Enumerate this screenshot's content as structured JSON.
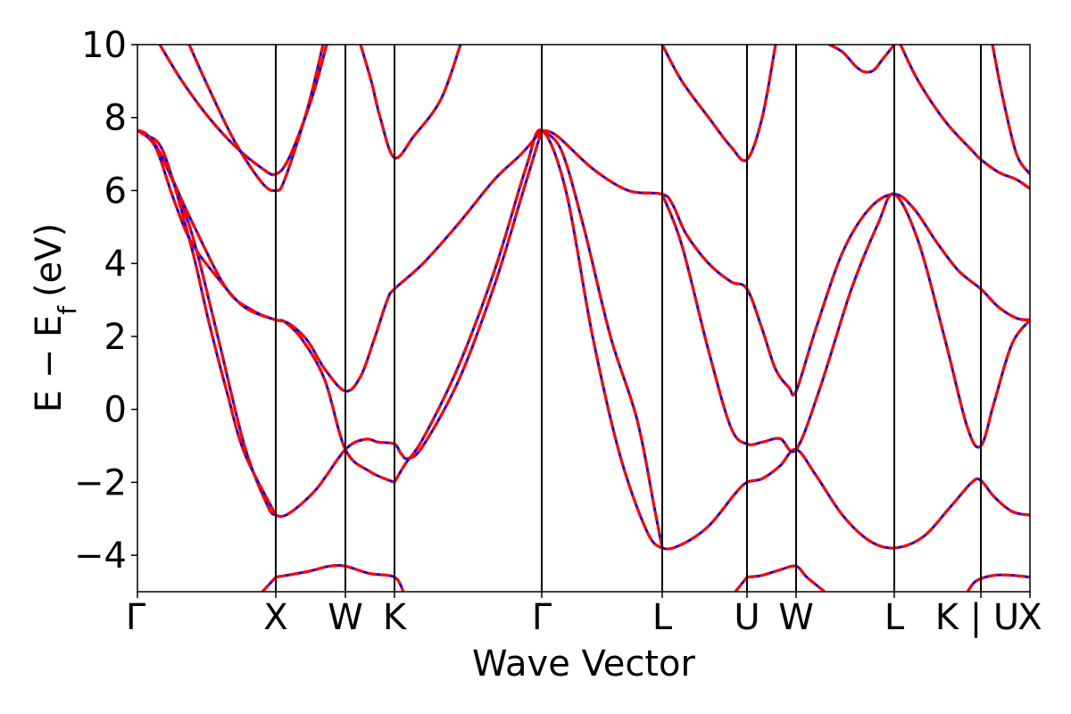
{
  "chart_data": {
    "type": "line",
    "xlabel": "Wave Vector",
    "ylabel": "E − E",
    "ylabel_sub": "f",
    "ylabel_unit": "(eV)",
    "ylim": [
      -5,
      10
    ],
    "yticks": [
      -4,
      -2,
      0,
      2,
      4,
      6,
      8,
      10
    ],
    "ytick_labels": [
      "−4",
      "−2",
      "0",
      "2",
      "4",
      "6",
      "8",
      "10"
    ],
    "xlim": [
      0,
      1000
    ],
    "kpoints": [
      {
        "label": "Γ",
        "x": 0
      },
      {
        "label": "X",
        "x": 155
      },
      {
        "label": "W",
        "x": 233
      },
      {
        "label": "K",
        "x": 288
      },
      {
        "label": "Γ",
        "x": 453
      },
      {
        "label": "L",
        "x": 588
      },
      {
        "label": "U",
        "x": 683
      },
      {
        "label": "W",
        "x": 738
      },
      {
        "label": "L",
        "x": 848
      },
      {
        "label": "K | U",
        "x": 945
      },
      {
        "label": "X",
        "x": 1000
      }
    ],
    "series_styles": [
      {
        "color": "#0000ff",
        "dash": "solid"
      },
      {
        "color": "#ff0000",
        "dash": "dashed"
      }
    ],
    "bands": [
      {
        "points": [
          [
            0,
            7.65
          ],
          [
            12,
            7.5
          ],
          [
            30,
            6.8
          ],
          [
            60,
            5.2
          ],
          [
            100,
            3.3
          ],
          [
            130,
            2.7
          ],
          [
            155,
            2.45
          ],
          [
            165,
            2.4
          ],
          [
            185,
            1.9
          ],
          [
            210,
            0.8
          ],
          [
            233,
            -1.1
          ],
          [
            260,
            -1.7
          ],
          [
            288,
            -2.0
          ]
        ]
      },
      {
        "points": [
          [
            0,
            7.65
          ],
          [
            12,
            7.5
          ],
          [
            30,
            6.8
          ],
          [
            60,
            4.9
          ],
          [
            90,
            2.0
          ],
          [
            120,
            -1.0
          ],
          [
            145,
            -2.6
          ],
          [
            155,
            -2.9
          ],
          [
            170,
            -2.85
          ],
          [
            200,
            -2.2
          ],
          [
            233,
            -1.1
          ],
          [
            255,
            -0.82
          ],
          [
            270,
            -0.9
          ],
          [
            288,
            -0.95
          ],
          [
            295,
            -1.2
          ],
          [
            303,
            -1.35
          ],
          [
            320,
            -1.0
          ],
          [
            360,
            0.8
          ],
          [
            400,
            3.4
          ],
          [
            430,
            5.8
          ],
          [
            453,
            7.65
          ]
        ]
      },
      {
        "points": [
          [
            155,
            2.45
          ],
          [
            170,
            2.35
          ],
          [
            190,
            1.9
          ],
          [
            210,
            1.1
          ],
          [
            233,
            0.5
          ],
          [
            250,
            0.9
          ],
          [
            265,
            1.9
          ],
          [
            280,
            3.0
          ],
          [
            288,
            3.3
          ],
          [
            320,
            4.0
          ],
          [
            360,
            5.1
          ],
          [
            400,
            6.3
          ],
          [
            430,
            7.0
          ],
          [
            453,
            7.65
          ]
        ]
      },
      {
        "points": [
          [
            288,
            -2.0
          ],
          [
            300,
            -1.5
          ],
          [
            320,
            -0.8
          ],
          [
            360,
            1.2
          ],
          [
            400,
            3.8
          ],
          [
            435,
            6.6
          ],
          [
            453,
            7.65
          ],
          [
            480,
            6.0
          ],
          [
            510,
            2.0
          ],
          [
            540,
            -1.2
          ],
          [
            570,
            -3.3
          ],
          [
            588,
            -3.8
          ],
          [
            610,
            -3.7
          ],
          [
            640,
            -3.2
          ],
          [
            670,
            -2.3
          ],
          [
            683,
            -2.0
          ],
          [
            700,
            -1.9
          ],
          [
            720,
            -1.55
          ],
          [
            738,
            -1.1
          ],
          [
            760,
            -1.8
          ],
          [
            790,
            -2.9
          ],
          [
            820,
            -3.6
          ],
          [
            848,
            -3.8
          ],
          [
            880,
            -3.5
          ],
          [
            910,
            -2.7
          ],
          [
            935,
            -2.0
          ],
          [
            945,
            -1.95
          ],
          [
            960,
            -2.4
          ],
          [
            980,
            -2.8
          ],
          [
            1000,
            -2.9
          ]
        ]
      },
      {
        "points": [
          [
            155,
            -4.6
          ],
          [
            190,
            -4.45
          ],
          [
            215,
            -4.3
          ],
          [
            233,
            -4.3
          ],
          [
            260,
            -4.5
          ],
          [
            288,
            -4.6
          ],
          [
            298,
            -5.0
          ]
        ]
      },
      {
        "points": [
          [
            453,
            7.65
          ],
          [
            470,
            7.5
          ],
          [
            510,
            6.6
          ],
          [
            550,
            6.0
          ],
          [
            588,
            5.9
          ],
          [
            600,
            5.6
          ],
          [
            615,
            4.8
          ],
          [
            640,
            4.0
          ],
          [
            665,
            3.5
          ],
          [
            683,
            3.3
          ],
          [
            700,
            2.2
          ],
          [
            715,
            1.1
          ],
          [
            730,
            0.6
          ],
          [
            738,
            0.5
          ],
          [
            760,
            2.2
          ],
          [
            790,
            4.3
          ],
          [
            820,
            5.5
          ],
          [
            848,
            5.9
          ],
          [
            870,
            5.5
          ],
          [
            895,
            4.6
          ],
          [
            920,
            3.8
          ],
          [
            945,
            3.3
          ],
          [
            965,
            2.8
          ],
          [
            985,
            2.5
          ],
          [
            1000,
            2.45
          ]
        ]
      },
      {
        "points": [
          [
            453,
            7.65
          ],
          [
            475,
            7.1
          ],
          [
            500,
            5.0
          ],
          [
            530,
            2.0
          ],
          [
            560,
            -0.3
          ],
          [
            580,
            -2.8
          ],
          [
            588,
            -3.8
          ]
        ]
      },
      {
        "points": [
          [
            588,
            5.9
          ],
          [
            610,
            4.5
          ],
          [
            640,
            1.6
          ],
          [
            665,
            -0.5
          ],
          [
            683,
            -0.95
          ],
          [
            700,
            -0.9
          ],
          [
            720,
            -0.8
          ],
          [
            738,
            -1.1
          ],
          [
            765,
            0.6
          ],
          [
            800,
            3.3
          ],
          [
            830,
            5.1
          ],
          [
            848,
            5.9
          ],
          [
            875,
            4.6
          ],
          [
            905,
            1.9
          ],
          [
            930,
            -0.5
          ],
          [
            945,
            -1.0
          ],
          [
            960,
            0.2
          ],
          [
            980,
            1.8
          ],
          [
            1000,
            2.45
          ]
        ]
      },
      {
        "points": [
          [
            0,
            7.65
          ],
          [
            20,
            7.2
          ],
          [
            40,
            5.8
          ],
          [
            60,
            4.6
          ],
          [
            90,
            3.6
          ],
          [
            120,
            2.8
          ],
          [
            155,
            2.45
          ]
        ]
      },
      {
        "points": [
          [
            155,
            -2.9
          ],
          [
            120,
            -1.2
          ],
          [
            100,
            0.5
          ],
          [
            80,
            2.4
          ],
          [
            60,
            4.5
          ],
          [
            30,
            7.0
          ],
          [
            12,
            7.5
          ]
        ]
      },
      {
        "points": [
          [
            25,
            10.0
          ],
          [
            50,
            9.0
          ],
          [
            80,
            8.0
          ],
          [
            110,
            7.2
          ],
          [
            140,
            6.6
          ],
          [
            155,
            6.45
          ],
          [
            170,
            6.9
          ],
          [
            195,
            8.5
          ],
          [
            212,
            10.0
          ]
        ]
      },
      {
        "points": [
          [
            58,
            10.0
          ],
          [
            80,
            8.8
          ],
          [
            110,
            7.3
          ],
          [
            140,
            6.2
          ],
          [
            155,
            6.0
          ],
          [
            165,
            6.3
          ],
          [
            190,
            8.2
          ],
          [
            208,
            10.0
          ]
        ]
      },
      {
        "points": [
          [
            250,
            10.0
          ],
          [
            262,
            9.0
          ],
          [
            272,
            8.0
          ],
          [
            288,
            6.9
          ],
          [
            310,
            7.5
          ],
          [
            340,
            8.5
          ],
          [
            362,
            10.0
          ]
        ]
      },
      {
        "points": [
          [
            588,
            10.0
          ],
          [
            610,
            9.0
          ],
          [
            640,
            8.0
          ],
          [
            665,
            7.2
          ],
          [
            683,
            6.85
          ],
          [
            700,
            8.0
          ],
          [
            715,
            10.0
          ]
        ]
      },
      {
        "points": [
          [
            683,
            -4.6
          ],
          [
            700,
            -4.55
          ],
          [
            720,
            -4.4
          ],
          [
            738,
            -4.3
          ],
          [
            750,
            -4.6
          ],
          [
            770,
            -5.0
          ]
        ]
      },
      {
        "points": [
          [
            670,
            -5.0
          ],
          [
            683,
            -4.6
          ]
        ]
      },
      {
        "points": [
          [
            775,
            10.0
          ],
          [
            790,
            9.8
          ],
          [
            805,
            9.4
          ],
          [
            815,
            9.25
          ],
          [
            825,
            9.3
          ],
          [
            835,
            9.6
          ],
          [
            848,
            10.0
          ]
        ]
      },
      {
        "points": [
          [
            855,
            10.0
          ],
          [
            875,
            9.0
          ],
          [
            905,
            7.9
          ],
          [
            935,
            7.1
          ],
          [
            945,
            6.85
          ],
          [
            965,
            6.5
          ],
          [
            985,
            6.3
          ],
          [
            1000,
            6.05
          ]
        ]
      },
      {
        "points": [
          [
            958,
            10.0
          ],
          [
            970,
            8.5
          ],
          [
            985,
            7.0
          ],
          [
            1000,
            6.45
          ]
        ]
      },
      {
        "points": [
          [
            930,
            -5.0
          ],
          [
            940,
            -4.7
          ],
          [
            960,
            -4.55
          ],
          [
            980,
            -4.55
          ],
          [
            1000,
            -4.6
          ]
        ]
      },
      {
        "points": [
          [
            140,
            -5.0
          ],
          [
            155,
            -4.6
          ]
        ]
      }
    ]
  }
}
